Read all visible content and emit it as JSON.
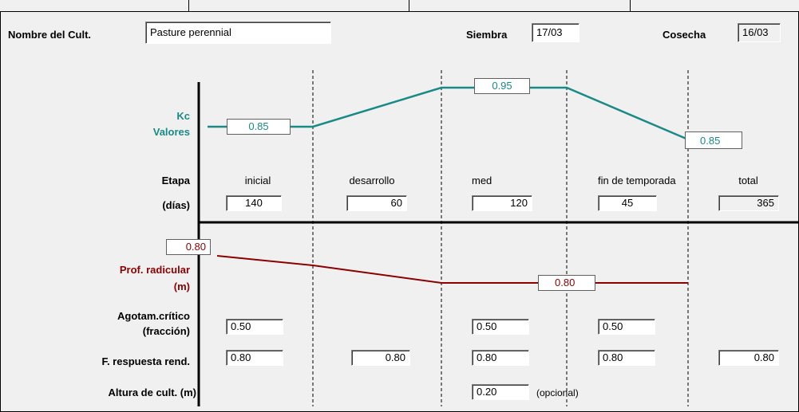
{
  "crop": {
    "name_label": "Nombre del Cult.",
    "name_value": "Pasture perennial",
    "siembra_label": "Siembra",
    "siembra_value": "17/03",
    "cosecha_label": "Cosecha",
    "cosecha_value": "16/03"
  },
  "kc": {
    "label_line1": "Kc",
    "label_line2": "Valores",
    "ini": "0.85",
    "mid": "0.95",
    "end": "0.85",
    "color": "#1a8a86"
  },
  "etapa": {
    "label_line1": "Etapa",
    "label_line2": "(días)",
    "stages": [
      "inicial",
      "desarrollo",
      "med",
      "fin de temporada",
      "total"
    ],
    "days": [
      "140",
      "60",
      "120",
      "45",
      "365"
    ]
  },
  "root": {
    "label_line1": "Prof. radicular",
    "label_line2": "(m)",
    "start": "0.80",
    "max": "0.80",
    "color": "#8b0000"
  },
  "depletion": {
    "label_line1": "Agotam.crítico",
    "label_line2": "(fracción)",
    "values": [
      "0.50",
      "0.50",
      "0.50"
    ]
  },
  "yield_response": {
    "label": "F. respuesta rend.",
    "values": [
      "0.80",
      "0.80",
      "0.80",
      "0.80",
      "0.80"
    ]
  },
  "height": {
    "label": "Altura de cult. (m)",
    "value": "0.20",
    "optional_note": "(opcional)"
  }
}
